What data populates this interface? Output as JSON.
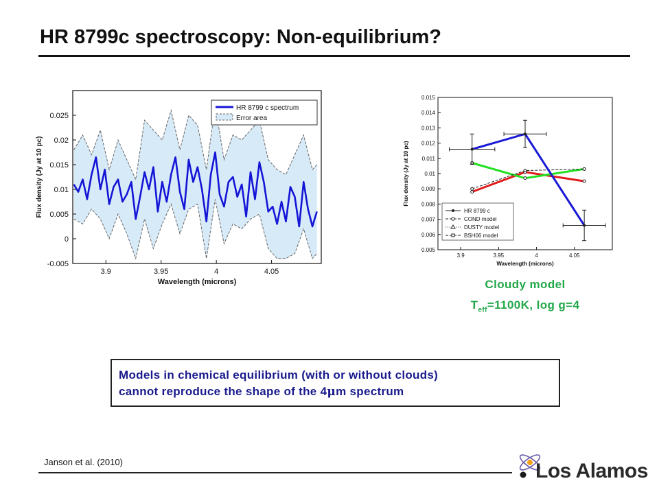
{
  "slide": {
    "title": "HR 8799c spectroscopy: Non-equilibrium?",
    "model_label_line1": "Cloudy model",
    "model_label_T": "T",
    "model_label_sub": "eff",
    "model_label_rest": "=1100K, log g=4",
    "box_line1": "Models in chemical equilibrium (with or without clouds)",
    "box_line2_pre": "cannot reproduce the shape of the 4",
    "box_line2_mu": "μ",
    "box_line2_post": "m spectrum",
    "citation": "Janson et al. (2010)",
    "logo_text": "Los Alamos"
  },
  "colors": {
    "spectrum": "#1515d6",
    "error_fill": "#d6eaf8",
    "error_edge": "#666666",
    "cond": "#e01b1b",
    "dusty": "#22e022",
    "bsh06": "#1a1ad6",
    "text_green": "#22a84a",
    "text_blue": "#1a1a8c"
  },
  "chart_data": [
    {
      "type": "line",
      "xlabel": "Wavelength (microns)",
      "ylabel": "Flux density (Jy at 10 pc)",
      "xlim": [
        3.87,
        4.095
      ],
      "ylim": [
        -0.005,
        0.03
      ],
      "xticks": [
        "3.9",
        "3.95",
        "4",
        "4.05"
      ],
      "xtick_values": [
        3.9,
        3.95,
        4.0,
        4.05
      ],
      "yticks": [
        "-0.005",
        "0",
        "0.005",
        "0.01",
        "0.015",
        "0.02",
        "0.025"
      ],
      "ytick_values": [
        -0.005,
        0,
        0.005,
        0.01,
        0.015,
        0.02,
        0.025
      ],
      "legend_position": "top-right",
      "series": [
        {
          "name": "HR 8799 c spectrum",
          "x": [
            3.871,
            3.875,
            3.879,
            3.883,
            3.887,
            3.891,
            3.895,
            3.899,
            3.903,
            3.907,
            3.911,
            3.915,
            3.919,
            3.923,
            3.927,
            3.931,
            3.935,
            3.939,
            3.943,
            3.947,
            3.951,
            3.955,
            3.959,
            3.963,
            3.967,
            3.971,
            3.975,
            3.979,
            3.983,
            3.987,
            3.991,
            3.995,
            3.999,
            4.003,
            4.007,
            4.011,
            4.015,
            4.019,
            4.023,
            4.027,
            4.031,
            4.035,
            4.039,
            4.043,
            4.047,
            4.051,
            4.055,
            4.059,
            4.063,
            4.067,
            4.071,
            4.075,
            4.079,
            4.083,
            4.087,
            4.091
          ],
          "values": [
            0.011,
            0.0095,
            0.012,
            0.008,
            0.013,
            0.0165,
            0.01,
            0.014,
            0.007,
            0.0105,
            0.012,
            0.0075,
            0.009,
            0.0115,
            0.004,
            0.0085,
            0.0135,
            0.01,
            0.0145,
            0.0055,
            0.0115,
            0.0075,
            0.013,
            0.0165,
            0.0095,
            0.006,
            0.016,
            0.0115,
            0.0145,
            0.01,
            0.0035,
            0.013,
            0.0175,
            0.009,
            0.0065,
            0.0115,
            0.0125,
            0.0085,
            0.011,
            0.0045,
            0.0135,
            0.008,
            0.0155,
            0.0115,
            0.0055,
            0.0065,
            0.003,
            0.0075,
            0.0035,
            0.0105,
            0.0085,
            0.0025,
            0.0115,
            0.006,
            0.0025,
            0.0055
          ]
        },
        {
          "name": "Error area",
          "x": [
            3.871,
            3.879,
            3.887,
            3.895,
            3.903,
            3.911,
            3.919,
            3.927,
            3.935,
            3.943,
            3.951,
            3.959,
            3.967,
            3.975,
            3.983,
            3.991,
            3.999,
            4.007,
            4.015,
            4.023,
            4.031,
            4.039,
            4.047,
            4.055,
            4.063,
            4.071,
            4.079,
            4.087,
            4.091
          ],
          "upper": [
            0.018,
            0.021,
            0.017,
            0.022,
            0.014,
            0.02,
            0.016,
            0.012,
            0.024,
            0.022,
            0.02,
            0.026,
            0.018,
            0.025,
            0.023,
            0.014,
            0.027,
            0.016,
            0.021,
            0.02,
            0.022,
            0.024,
            0.016,
            0.014,
            0.013,
            0.017,
            0.021,
            0.014,
            0.015
          ],
          "lower": [
            0.004,
            0.003,
            0.006,
            0.004,
            0.0,
            0.005,
            0.001,
            -0.004,
            0.004,
            -0.002,
            0.003,
            0.007,
            0.001,
            0.006,
            0.007,
            -0.004,
            0.008,
            -0.001,
            0.003,
            0.002,
            0.004,
            0.005,
            -0.002,
            -0.004,
            -0.004,
            -0.003,
            0.002,
            -0.004,
            -0.003
          ]
        }
      ]
    },
    {
      "type": "line",
      "xlabel": "Wavelength (microns)",
      "ylabel": "Flux density (Jy at 10 pc)",
      "xlim": [
        3.87,
        4.1
      ],
      "ylim": [
        0.005,
        0.015
      ],
      "xticks": [
        "3.9",
        "3.95",
        "4",
        "4.05"
      ],
      "xtick_values": [
        3.9,
        3.95,
        4.0,
        4.05
      ],
      "yticks": [
        "0.005",
        "0.006",
        "0.007",
        "0.008",
        "0.009",
        "0.01",
        "0.011",
        "0.012",
        "0.013",
        "0.014",
        "0.015"
      ],
      "ytick_values": [
        0.005,
        0.006,
        0.007,
        0.008,
        0.009,
        0.01,
        0.011,
        0.012,
        0.013,
        0.014,
        0.015
      ],
      "legend_position": "bottom-left",
      "series": [
        {
          "name": "HR 8799 c",
          "x": [
            3.915,
            3.985,
            4.063
          ],
          "values": [
            0.0116,
            0.0126,
            0.0066
          ],
          "xerr": [
            0.03,
            0.028,
            0.028
          ],
          "yerr": [
            0.001,
            0.0009,
            0.001
          ]
        },
        {
          "name": "COND model",
          "x": [
            3.915,
            3.985,
            4.063
          ],
          "values": [
            0.0088,
            0.0101,
            0.0095
          ]
        },
        {
          "name": "DUSTY model",
          "x": [
            3.915,
            3.985,
            4.063
          ],
          "values": [
            0.0107,
            0.0097,
            0.0103
          ]
        },
        {
          "name": "BSH06 model",
          "x": [
            3.915,
            3.985,
            4.063
          ],
          "values": [
            0.009,
            0.0102,
            0.0103
          ]
        }
      ]
    }
  ]
}
